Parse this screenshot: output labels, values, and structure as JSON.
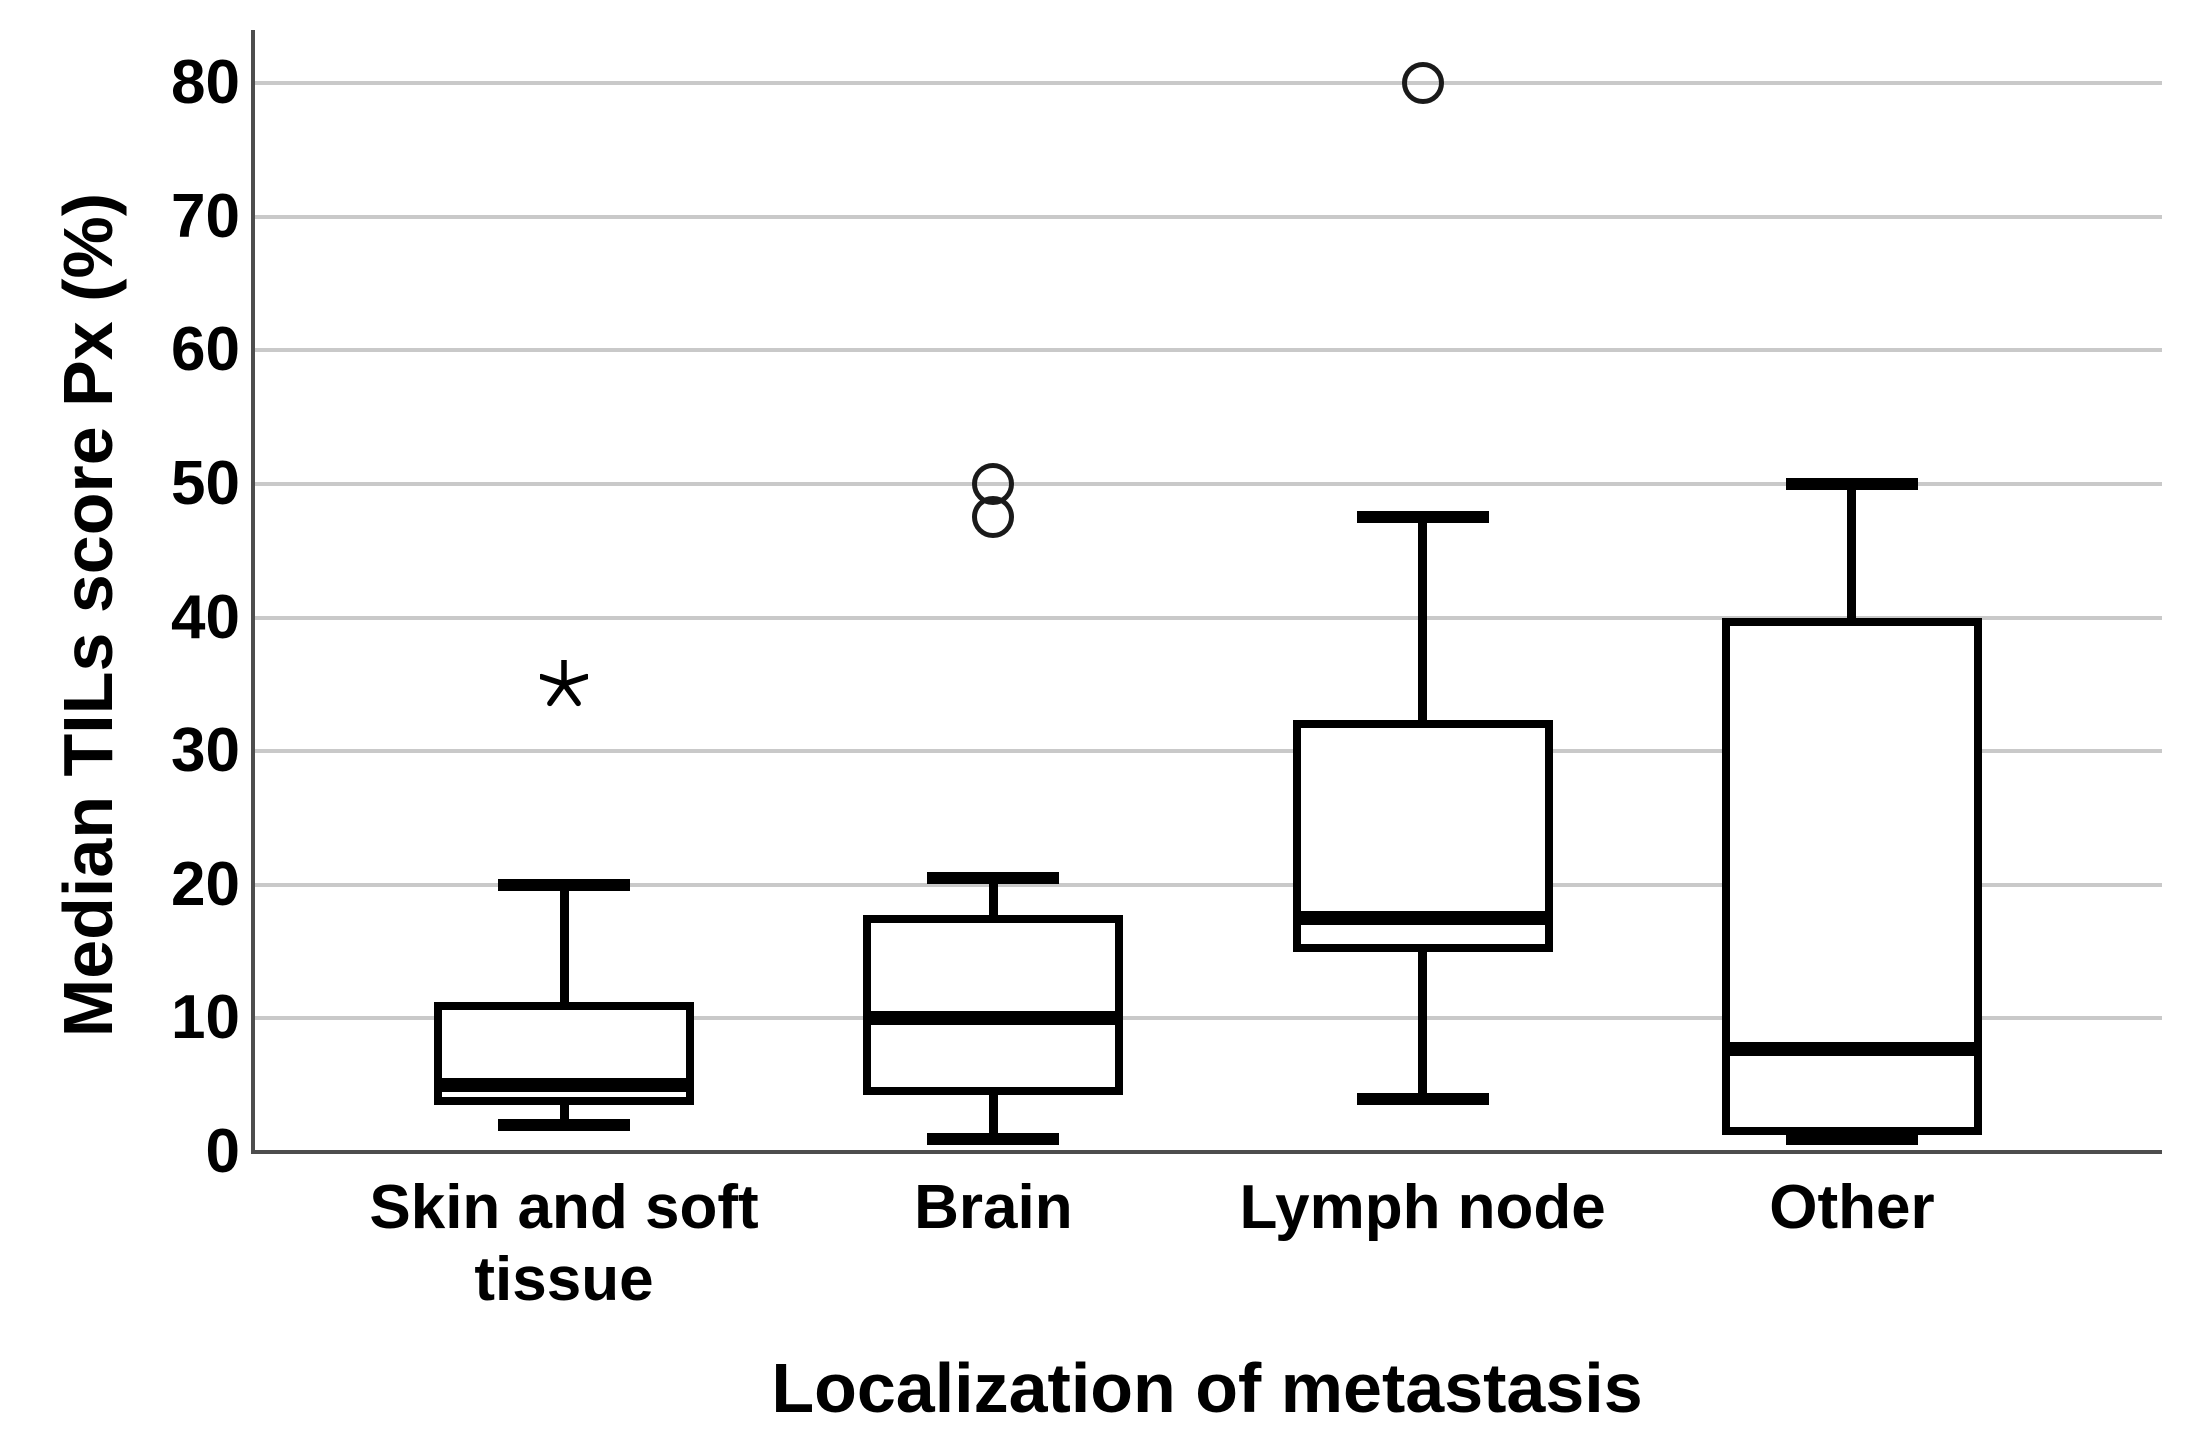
{
  "chart_data": {
    "type": "boxplot",
    "title": "",
    "xlabel": "Localization of metastasis",
    "ylabel": "Median TILs score Px (%)",
    "ylim": [
      0,
      80
    ],
    "yticks": [
      0,
      10,
      20,
      30,
      40,
      50,
      60,
      70,
      80
    ],
    "grid": "horizontal-light-gray",
    "legend": "none",
    "categories": [
      "Skin and soft tissue",
      "Brain",
      "Lymph node",
      "Other"
    ],
    "series": [
      {
        "category": "Skin and soft tissue",
        "whisker_low": 2,
        "q1": 3.5,
        "median": 5,
        "q3": 11.2,
        "whisker_high": 20,
        "outliers": [],
        "extremes": [
          35
        ]
      },
      {
        "category": "Brain",
        "whisker_low": 1,
        "q1": 4.3,
        "median": 10,
        "q3": 17.7,
        "whisker_high": 20.5,
        "outliers": [
          47.5,
          50
        ],
        "extremes": []
      },
      {
        "category": "Lymph node",
        "whisker_low": 4,
        "q1": 15,
        "median": 17.5,
        "q3": 32.3,
        "whisker_high": 47.5,
        "outliers": [
          80
        ],
        "extremes": []
      },
      {
        "category": "Other",
        "whisker_low": 1,
        "q1": 1.3,
        "median": 7.7,
        "q3": 40,
        "whisker_high": 50,
        "outliers": [],
        "extremes": []
      }
    ],
    "marker_legend": {
      "circle": "outlier",
      "asterisk": "extreme value"
    },
    "colors": {
      "box_stroke": "#000000",
      "box_fill": "#ffffff",
      "gridline": "#c9c9c9",
      "axis_line": "#4d4d4d",
      "text": "#000000",
      "background": "#ffffff"
    }
  }
}
